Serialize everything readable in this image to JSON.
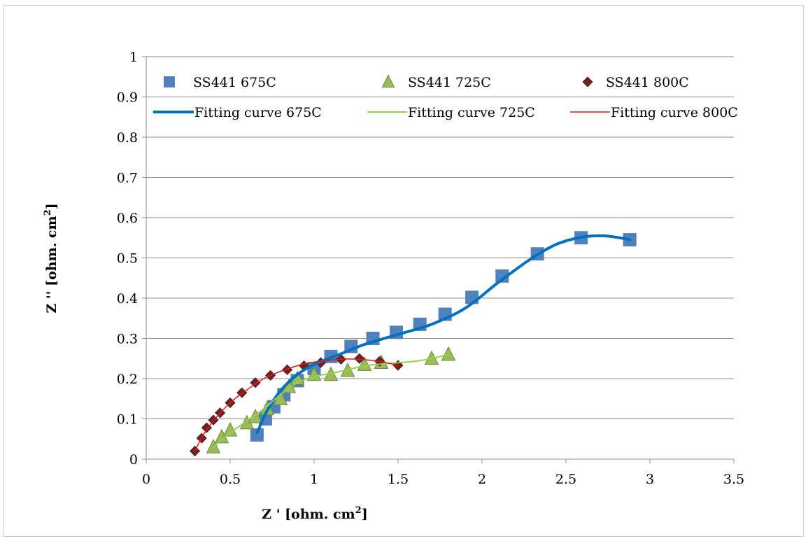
{
  "chart_data": {
    "type": "scatter",
    "xlabel": "Z ' [ohm. cm",
    "xlabel_sup": "2",
    "xlabel_end": "]",
    "ylabel": "Z '' [ohm. cm",
    "ylabel_sup": "2",
    "ylabel_end": "]",
    "xlim": [
      0,
      3.5
    ],
    "ylim": [
      0,
      1
    ],
    "xticks": [
      0,
      0.5,
      1,
      1.5,
      2,
      2.5,
      3,
      3.5
    ],
    "xtick_labels": [
      "0",
      "0.5",
      "1",
      "1.5",
      "2",
      "2.5",
      "3",
      "3.5"
    ],
    "yticks": [
      0,
      0.1,
      0.2,
      0.3,
      0.4,
      0.5,
      0.6,
      0.7,
      0.8,
      0.9,
      1
    ],
    "ytick_labels": [
      "0",
      "0.1",
      "0.2",
      "0.3",
      "0.4",
      "0.5",
      "0.6",
      "0.7",
      "0.8",
      "0.9",
      "1"
    ],
    "grid": "horizontal",
    "legend_placement": "top",
    "series": [
      {
        "name": "SS441 675C",
        "kind": "marker",
        "marker": "square",
        "color": "#4F81BD",
        "points": [
          [
            0.66,
            0.06
          ],
          [
            0.71,
            0.1
          ],
          [
            0.76,
            0.13
          ],
          [
            0.82,
            0.16
          ],
          [
            0.9,
            0.195
          ],
          [
            1.0,
            0.225
          ],
          [
            1.1,
            0.255
          ],
          [
            1.22,
            0.28
          ],
          [
            1.35,
            0.3
          ],
          [
            1.49,
            0.315
          ],
          [
            1.63,
            0.335
          ],
          [
            1.78,
            0.36
          ],
          [
            1.94,
            0.402
          ],
          [
            2.12,
            0.455
          ],
          [
            2.33,
            0.51
          ],
          [
            2.59,
            0.55
          ],
          [
            2.88,
            0.545
          ]
        ]
      },
      {
        "name": "SS441 725C",
        "kind": "marker",
        "marker": "triangle",
        "color": "#9BBB59",
        "points": [
          [
            0.4,
            0.03
          ],
          [
            0.45,
            0.055
          ],
          [
            0.5,
            0.072
          ],
          [
            0.6,
            0.09
          ],
          [
            0.65,
            0.105
          ],
          [
            0.72,
            0.125
          ],
          [
            0.8,
            0.15
          ],
          [
            0.85,
            0.18
          ],
          [
            0.9,
            0.2
          ],
          [
            1.0,
            0.21
          ],
          [
            1.1,
            0.21
          ],
          [
            1.2,
            0.22
          ],
          [
            1.3,
            0.235
          ],
          [
            1.4,
            0.24
          ],
          [
            1.7,
            0.25
          ],
          [
            1.8,
            0.26
          ]
        ]
      },
      {
        "name": "SS441 800C",
        "kind": "marker",
        "marker": "diamond",
        "color": "#6E2323",
        "points": [
          [
            0.29,
            0.02
          ],
          [
            0.33,
            0.052
          ],
          [
            0.36,
            0.078
          ],
          [
            0.4,
            0.097
          ],
          [
            0.44,
            0.115
          ],
          [
            0.5,
            0.14
          ],
          [
            0.57,
            0.165
          ],
          [
            0.65,
            0.19
          ],
          [
            0.74,
            0.208
          ],
          [
            0.84,
            0.222
          ],
          [
            0.94,
            0.232
          ],
          [
            1.04,
            0.24
          ],
          [
            1.16,
            0.248
          ],
          [
            1.27,
            0.25
          ],
          [
            1.39,
            0.243
          ],
          [
            1.5,
            0.233
          ]
        ]
      },
      {
        "name": "Fitting curve 675C",
        "kind": "line",
        "color": "#0070C0",
        "width": 4,
        "points": [
          [
            0.66,
            0.065
          ],
          [
            0.72,
            0.12
          ],
          [
            0.8,
            0.17
          ],
          [
            0.9,
            0.21
          ],
          [
            1.0,
            0.235
          ],
          [
            1.15,
            0.26
          ],
          [
            1.3,
            0.285
          ],
          [
            1.5,
            0.31
          ],
          [
            1.7,
            0.335
          ],
          [
            1.9,
            0.375
          ],
          [
            2.1,
            0.44
          ],
          [
            2.3,
            0.5
          ],
          [
            2.45,
            0.535
          ],
          [
            2.6,
            0.552
          ],
          [
            2.72,
            0.555
          ],
          [
            2.82,
            0.55
          ],
          [
            2.88,
            0.545
          ]
        ]
      },
      {
        "name": "Fitting curve 725C",
        "kind": "line",
        "color": "#92D050",
        "width": 2,
        "points": [
          [
            0.4,
            0.03
          ],
          [
            0.5,
            0.065
          ],
          [
            0.6,
            0.095
          ],
          [
            0.7,
            0.125
          ],
          [
            0.8,
            0.16
          ],
          [
            0.9,
            0.19
          ],
          [
            1.0,
            0.205
          ],
          [
            1.1,
            0.213
          ],
          [
            1.2,
            0.222
          ],
          [
            1.3,
            0.232
          ],
          [
            1.45,
            0.238
          ],
          [
            1.6,
            0.243
          ],
          [
            1.7,
            0.25
          ],
          [
            1.8,
            0.26
          ]
        ]
      },
      {
        "name": "Fitting curve 800C",
        "kind": "line",
        "color": "#E3141D",
        "width": 1.5,
        "points": [
          [
            0.29,
            0.02
          ],
          [
            0.34,
            0.06
          ],
          [
            0.4,
            0.095
          ],
          [
            0.5,
            0.14
          ],
          [
            0.6,
            0.172
          ],
          [
            0.7,
            0.2
          ],
          [
            0.8,
            0.218
          ],
          [
            0.9,
            0.232
          ],
          [
            1.0,
            0.241
          ],
          [
            1.1,
            0.246
          ],
          [
            1.2,
            0.249
          ],
          [
            1.3,
            0.247
          ],
          [
            1.4,
            0.242
          ],
          [
            1.5,
            0.233
          ]
        ]
      }
    ]
  }
}
